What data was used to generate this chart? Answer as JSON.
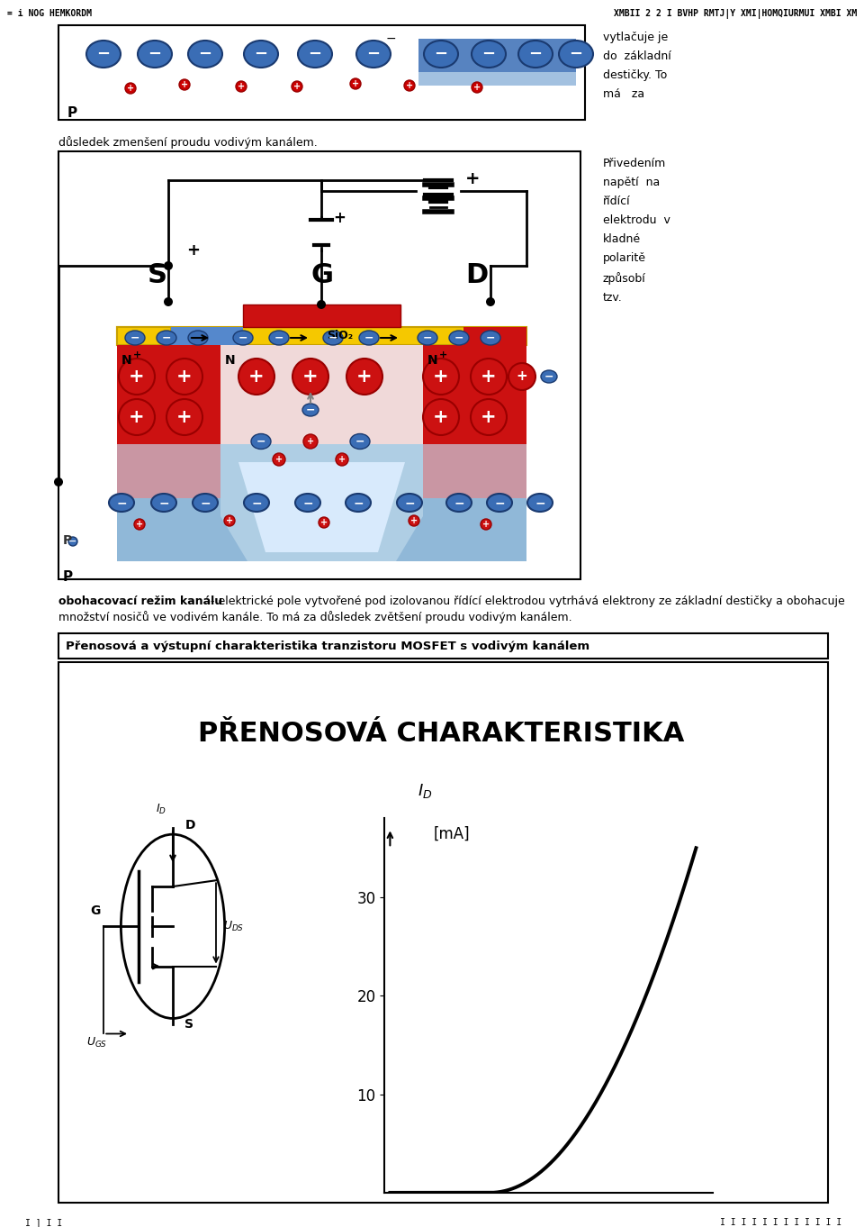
{
  "page_header_left": "= i NOG HEMKORDM",
  "page_header_right": "XMBII 2 2 I BVHP RMTJ|Y XMI|HOMQIURMUI XMBI XM",
  "caption1_right": "vytlačuje je\ndo  základní\ndestičky. To\nmá   za",
  "caption1_left": "důsledek zmenšení proudu vodivým kanálem.",
  "caption2_right": "Přivedením\nnapětí  na\nřídící\nelektrodu  v\nkladné\npolaritě\nzpůsobí\ntzv.",
  "bold_caption": "obohacovací režim kanálu",
  "rest_caption_line1": " - elektrické pole vytvořené pod izolovanou řídící elektrodou vytrhává elektrony ze základní destičky a obohacuje",
  "rest_caption_line2": "množství nosičů ve vodivém kanále. To má za důsledek zvětšení proudu vodivým kanálem.",
  "section3_header": "Přenosová a výstupní charakteristika tranzistoru MOSFET s vodivým kanálem",
  "chart_title": "PŘENOSOVÁ CHARAKTERISTIKA",
  "bg_color": "#ffffff"
}
